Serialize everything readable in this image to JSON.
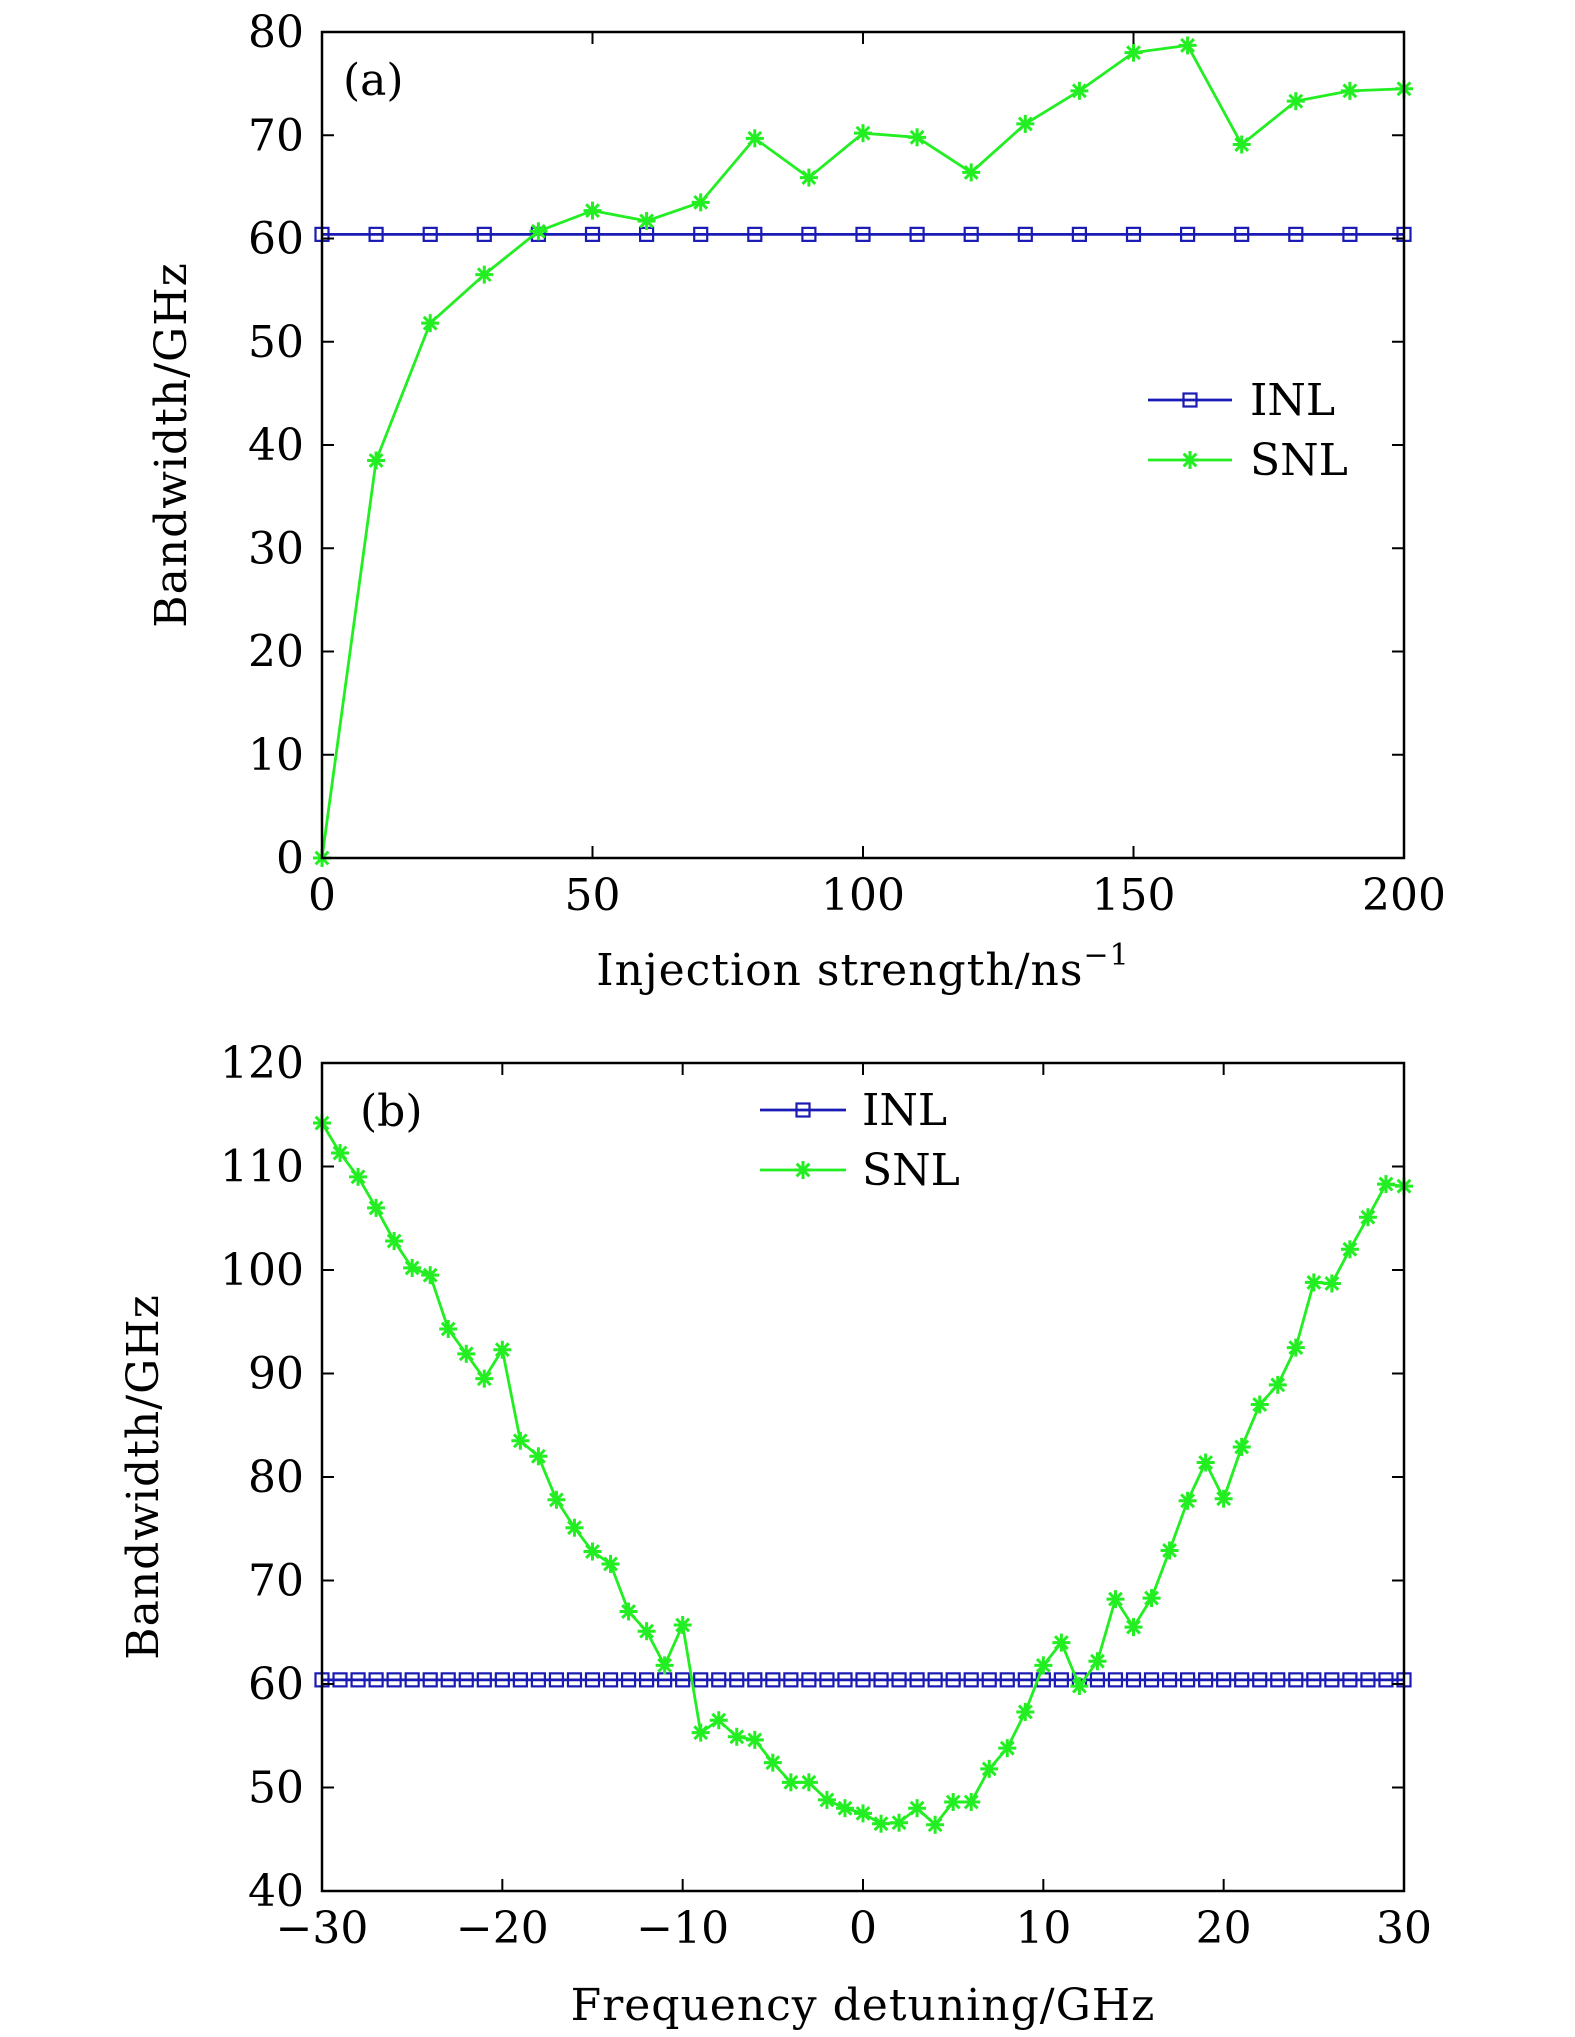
{
  "colors": {
    "inl": "#1a1ab4",
    "snl": "#22ee22",
    "axis": "#000000"
  },
  "chart_data": [
    {
      "type": "line",
      "panel_label": "(a)",
      "xlabel": "Injection strength/ns",
      "xlabel_sup": "−1",
      "ylabel": "Bandwidth/GHz",
      "xlim": [
        0,
        200
      ],
      "ylim": [
        0,
        80
      ],
      "xticks": [
        0,
        50,
        100,
        150,
        200
      ],
      "xtick_labels": [
        "0",
        "50",
        "100",
        "150",
        "200"
      ],
      "yticks": [
        0,
        10,
        20,
        30,
        40,
        50,
        60,
        70,
        80
      ],
      "ytick_labels": [
        "0",
        "10",
        "20",
        "30",
        "40",
        "50",
        "60",
        "70",
        "80"
      ],
      "legend_position": "right-middle",
      "series": [
        {
          "name": "INL",
          "marker": "square",
          "x": [
            0,
            10,
            20,
            30,
            40,
            50,
            60,
            70,
            80,
            90,
            100,
            110,
            120,
            130,
            140,
            150,
            160,
            170,
            180,
            190,
            200
          ],
          "y": [
            60.4,
            60.4,
            60.4,
            60.4,
            60.4,
            60.4,
            60.4,
            60.4,
            60.4,
            60.4,
            60.4,
            60.4,
            60.4,
            60.4,
            60.4,
            60.4,
            60.4,
            60.4,
            60.4,
            60.4,
            60.4
          ]
        },
        {
          "name": "SNL",
          "marker": "asterisk",
          "x": [
            0,
            10,
            20,
            30,
            40,
            50,
            60,
            70,
            80,
            90,
            100,
            110,
            120,
            130,
            140,
            150,
            160,
            170,
            180,
            190,
            200
          ],
          "y": [
            0,
            38.5,
            51.8,
            56.5,
            60.7,
            62.7,
            61.7,
            63.5,
            69.7,
            65.9,
            70.2,
            69.8,
            66.4,
            71.1,
            74.3,
            78.0,
            78.7,
            69.1,
            73.3,
            74.3,
            74.5
          ]
        }
      ]
    },
    {
      "type": "line",
      "panel_label": "(b)",
      "xlabel": "Frequency detuning/GHz",
      "ylabel": "Bandwidth/GHz",
      "xlim": [
        -30,
        30
      ],
      "ylim": [
        40,
        120
      ],
      "xticks": [
        -30,
        -20,
        -10,
        0,
        10,
        20,
        30
      ],
      "xtick_labels": [
        "−30",
        "−20",
        "−10",
        "0",
        "10",
        "20",
        "30"
      ],
      "yticks": [
        40,
        50,
        60,
        70,
        80,
        90,
        100,
        110,
        120
      ],
      "ytick_labels": [
        "40",
        "50",
        "60",
        "70",
        "80",
        "90",
        "100",
        "110",
        "120"
      ],
      "legend_position": "top-center",
      "series": [
        {
          "name": "INL",
          "marker": "square",
          "x": [
            -30,
            -29,
            -28,
            -27,
            -26,
            -25,
            -24,
            -23,
            -22,
            -21,
            -20,
            -19,
            -18,
            -17,
            -16,
            -15,
            -14,
            -13,
            -12,
            -11,
            -10,
            -9,
            -8,
            -7,
            -6,
            -5,
            -4,
            -3,
            -2,
            -1,
            0,
            1,
            2,
            3,
            4,
            5,
            6,
            7,
            8,
            9,
            10,
            11,
            12,
            13,
            14,
            15,
            16,
            17,
            18,
            19,
            20,
            21,
            22,
            23,
            24,
            25,
            26,
            27,
            28,
            29,
            30
          ],
          "y": [
            60.4,
            60.4,
            60.4,
            60.4,
            60.4,
            60.4,
            60.4,
            60.4,
            60.4,
            60.4,
            60.4,
            60.4,
            60.4,
            60.4,
            60.4,
            60.4,
            60.4,
            60.4,
            60.4,
            60.4,
            60.4,
            60.4,
            60.4,
            60.4,
            60.4,
            60.4,
            60.4,
            60.4,
            60.4,
            60.4,
            60.4,
            60.4,
            60.4,
            60.4,
            60.4,
            60.4,
            60.4,
            60.4,
            60.4,
            60.4,
            60.4,
            60.4,
            60.4,
            60.4,
            60.4,
            60.4,
            60.4,
            60.4,
            60.4,
            60.4,
            60.4,
            60.4,
            60.4,
            60.4,
            60.4,
            60.4,
            60.4,
            60.4,
            60.4,
            60.4,
            60.4
          ]
        },
        {
          "name": "SNL",
          "marker": "asterisk",
          "x": [
            -30,
            -29,
            -28,
            -27,
            -26,
            -25,
            -24,
            -23,
            -22,
            -21,
            -20,
            -19,
            -18,
            -17,
            -16,
            -15,
            -14,
            -13,
            -12,
            -11,
            -10,
            -9,
            -8,
            -7,
            -6,
            -5,
            -4,
            -3,
            -2,
            -1,
            0,
            1,
            2,
            3,
            4,
            5,
            6,
            7,
            8,
            9,
            10,
            11,
            12,
            13,
            14,
            15,
            16,
            17,
            18,
            19,
            20,
            21,
            22,
            23,
            24,
            25,
            26,
            27,
            28,
            29,
            30
          ],
          "y": [
            114.2,
            111.3,
            109.0,
            106.0,
            102.8,
            100.2,
            99.5,
            94.3,
            91.9,
            89.5,
            92.3,
            83.5,
            82.0,
            77.8,
            75.1,
            72.8,
            71.6,
            67.0,
            65.1,
            61.8,
            65.7,
            55.3,
            56.5,
            54.9,
            54.6,
            52.4,
            50.5,
            50.5,
            48.8,
            48.0,
            47.5,
            46.5,
            46.6,
            48.0,
            46.4,
            48.6,
            48.6,
            51.8,
            53.8,
            57.3,
            61.8,
            64.0,
            59.8,
            62.2,
            68.2,
            65.5,
            68.3,
            72.9,
            77.7,
            81.4,
            77.9,
            82.9,
            87.0,
            88.9,
            92.5,
            98.8,
            98.7,
            102.0,
            105.1,
            108.3,
            108.1
          ]
        }
      ]
    }
  ]
}
